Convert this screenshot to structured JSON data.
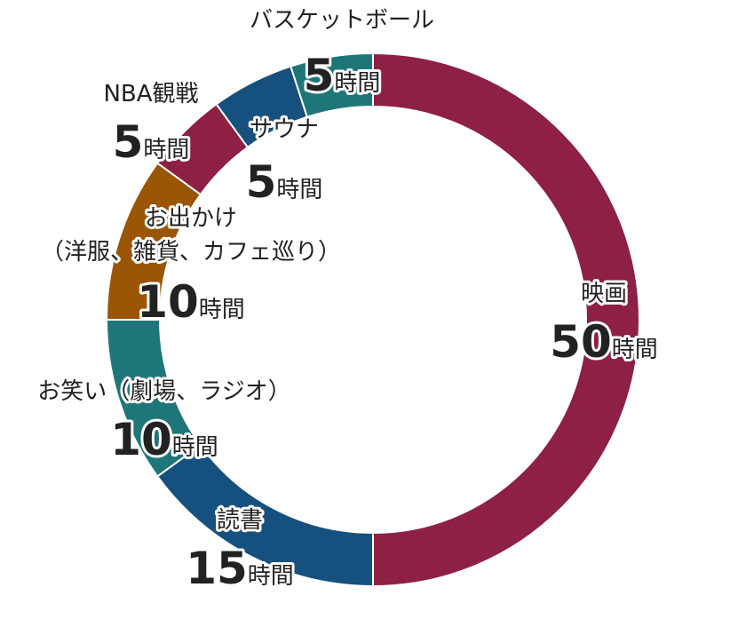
{
  "chart_data": {
    "type": "pie",
    "donut": true,
    "unit": "時間",
    "start": "top",
    "direction": "clockwise",
    "slices": [
      {
        "label": [
          "映画"
        ],
        "value": 50,
        "color": "#8e2043"
      },
      {
        "label": [
          "読書"
        ],
        "value": 15,
        "color": "#15507f"
      },
      {
        "label": [
          "お笑い（劇場、ラジオ）"
        ],
        "value": 10,
        "color": "#1e7678"
      },
      {
        "label": [
          "お出かけ",
          "（洋服、雑貨、カフェ巡り）"
        ],
        "value": 10,
        "color": "#9a5505"
      },
      {
        "label": [
          "NBA観戦"
        ],
        "value": 5,
        "color": "#8e2043"
      },
      {
        "label": [
          "サウナ"
        ],
        "value": 5,
        "color": "#15507f"
      },
      {
        "label": [
          "バスケットボール"
        ],
        "value": 5,
        "color": "#1e7678"
      }
    ]
  }
}
